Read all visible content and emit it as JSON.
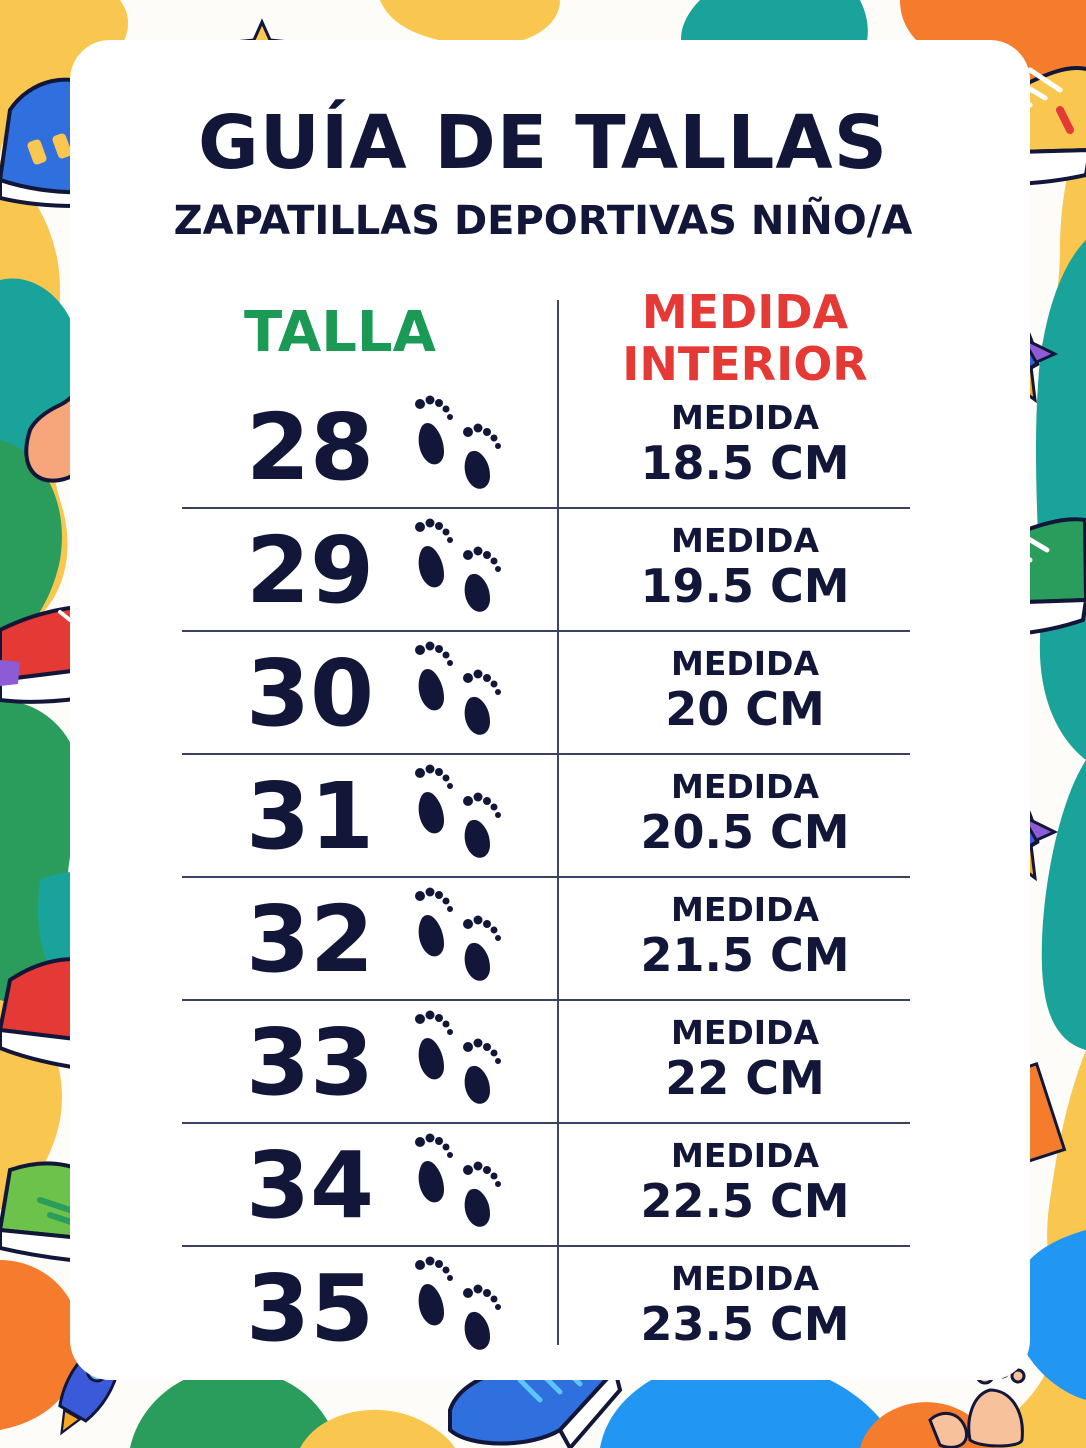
{
  "title": "GUÍA DE TALLAS",
  "subtitle": "ZAPATILLAS DEPORTIVAS NIÑO/A",
  "columns": {
    "size": "TALLA",
    "measure_line1": "MEDIDA",
    "measure_line2": "INTERIOR"
  },
  "rows": [
    {
      "size": "28",
      "label": "MEDIDA",
      "value": "18.5 CM"
    },
    {
      "size": "29",
      "label": "MEDIDA",
      "value": "19.5 CM"
    },
    {
      "size": "30",
      "label": "MEDIDA",
      "value": "20 CM"
    },
    {
      "size": "31",
      "label": "MEDIDA",
      "value": "20.5 CM"
    },
    {
      "size": "32",
      "label": "MEDIDA",
      "value": "21.5 CM"
    },
    {
      "size": "33",
      "label": "MEDIDA",
      "value": "22 CM"
    },
    {
      "size": "34",
      "label": "MEDIDA",
      "value": "22.5 CM"
    },
    {
      "size": "35",
      "label": "MEDIDA",
      "value": "23.5 CM"
    }
  ],
  "colors": {
    "text": "#12173a",
    "size_header": "#1a9a55",
    "measure_header": "#e53935",
    "blob_yellow": "#f9c74f",
    "blob_green": "#2a9d5c",
    "blob_teal": "#1aa39a",
    "blob_blue": "#2196f3",
    "blob_orange": "#f57c2c"
  },
  "icons": [
    "footprints-icon",
    "sneaker-icon",
    "rocket-icon",
    "star-icon",
    "eraser-icon",
    "leaf-icon"
  ]
}
